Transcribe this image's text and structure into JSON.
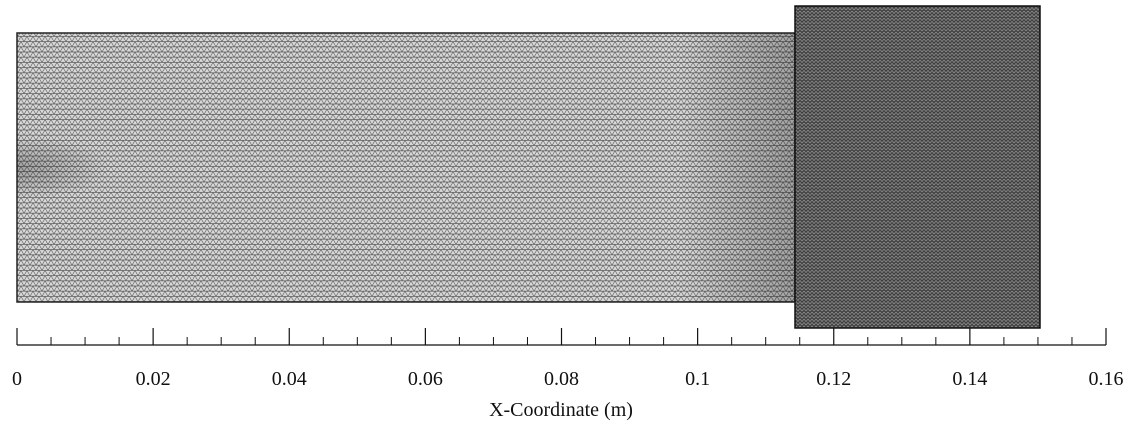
{
  "x_axis": {
    "label": "X-Coordinate (m)",
    "xlim": [
      0,
      0.16
    ],
    "xticks": [
      0,
      0.02,
      0.04,
      0.06,
      0.08,
      0.1,
      0.12,
      0.14,
      0.16
    ],
    "minor_xticks": [
      0.005,
      0.01,
      0.015,
      0.025,
      0.03,
      0.035,
      0.045,
      0.05,
      0.055,
      0.065,
      0.07,
      0.075,
      0.085,
      0.09,
      0.095,
      0.105,
      0.11,
      0.115,
      0.125,
      0.13,
      0.135,
      0.145,
      0.15,
      0.155
    ]
  }
}
